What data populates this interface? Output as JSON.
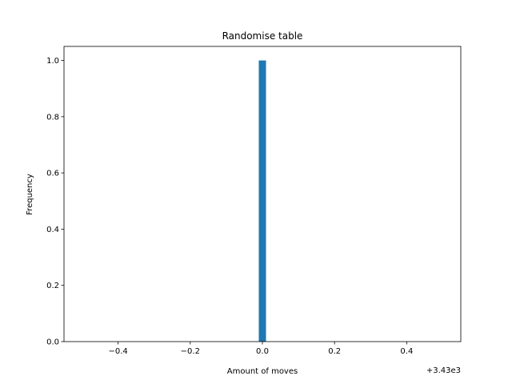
{
  "chart_data": {
    "type": "bar",
    "title": "Randomise table",
    "xlabel": "Amount of moves",
    "ylabel": "Frequency",
    "x_offset_label": "+3.43e3",
    "x_offset": 3430,
    "xlim": [
      -0.55,
      0.55
    ],
    "ylim": [
      0,
      1.05
    ],
    "x_ticks": [
      -0.4,
      -0.2,
      0.0,
      0.2,
      0.4
    ],
    "x_tick_labels": [
      "−0.4",
      "−0.2",
      "0.0",
      "0.2",
      "0.4"
    ],
    "y_ticks": [
      0.0,
      0.2,
      0.4,
      0.6,
      0.8,
      1.0
    ],
    "y_tick_labels": [
      "0.0",
      "0.2",
      "0.4",
      "0.6",
      "0.8",
      "1.0"
    ],
    "bars": [
      {
        "x_start": -0.01,
        "x_end": 0.01,
        "value": 1.0
      }
    ],
    "bar_color": "#1f77b4",
    "grid": false,
    "legend": "none"
  }
}
